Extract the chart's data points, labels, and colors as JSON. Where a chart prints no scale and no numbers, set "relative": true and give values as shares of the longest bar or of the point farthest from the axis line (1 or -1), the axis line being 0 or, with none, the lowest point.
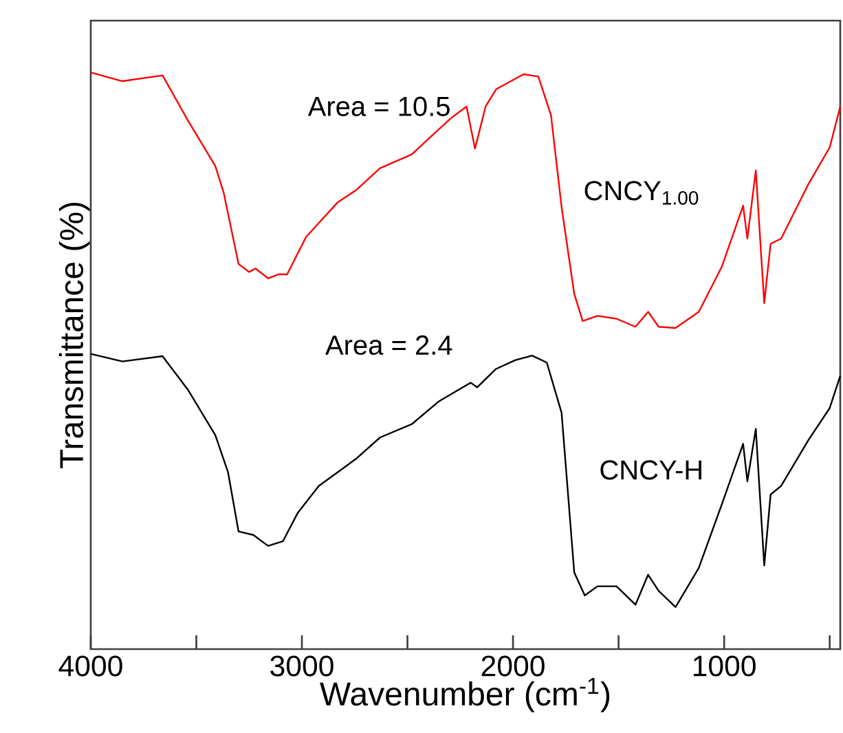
{
  "chart_data": {
    "type": "line",
    "xlabel": "Wavenumber (cm$^{-1}$)",
    "ylabel": "Transmittance (%)",
    "relative": true,
    "xlim": [
      4000,
      450
    ],
    "xticks": [
      4000,
      {
        "value": 3500,
        "label": null
      },
      3000,
      {
        "value": 2500,
        "label": null
      },
      2000,
      {
        "value": 1500,
        "label": null
      },
      1000,
      {
        "value": 500,
        "label": null
      }
    ],
    "annotations": [
      {
        "text": "Area = 10.5",
        "x": 2180,
        "y": 0.868
      },
      {
        "text": "Area = 2.4",
        "x": 2170,
        "y": 0.454
      }
    ],
    "series": [
      {
        "name": "CNCY$_{1.00}$",
        "color": "#ff0000",
        "x": [
          4000,
          3850,
          3660,
          3540,
          3410,
          3370,
          3300,
          3250,
          3220,
          3160,
          3110,
          3070,
          2980,
          2830,
          2740,
          2630,
          2480,
          2350,
          2290,
          2220,
          2180,
          2130,
          2080,
          2010,
          1950,
          1880,
          1820,
          1770,
          1710,
          1670,
          1600,
          1510,
          1420,
          1360,
          1310,
          1230,
          1120,
          1010,
          910,
          890,
          850,
          810,
          780,
          730,
          600,
          500,
          450
        ],
        "values": [
          1.0,
          0.985,
          0.995,
          0.917,
          0.838,
          0.791,
          0.668,
          0.654,
          0.66,
          0.643,
          0.65,
          0.65,
          0.715,
          0.775,
          0.797,
          0.834,
          0.858,
          0.902,
          0.922,
          0.941,
          0.868,
          0.941,
          0.971,
          0.985,
          0.997,
          0.993,
          0.926,
          0.767,
          0.616,
          0.569,
          0.578,
          0.573,
          0.559,
          0.585,
          0.559,
          0.557,
          0.585,
          0.664,
          0.769,
          0.712,
          0.83,
          0.6,
          0.703,
          0.712,
          0.807,
          0.87,
          0.941
        ]
      },
      {
        "name": "CNCY-H",
        "color": "#000000",
        "x": [
          4000,
          3850,
          3660,
          3540,
          3410,
          3350,
          3300,
          3230,
          3160,
          3090,
          3020,
          2920,
          2740,
          2630,
          2480,
          2350,
          2220,
          2200,
          2170,
          2080,
          1990,
          1910,
          1840,
          1770,
          1710,
          1660,
          1600,
          1510,
          1420,
          1360,
          1310,
          1230,
          1120,
          1010,
          910,
          890,
          850,
          810,
          780,
          730,
          600,
          500,
          450
        ],
        "values": [
          0.512,
          0.499,
          0.508,
          0.45,
          0.371,
          0.307,
          0.204,
          0.198,
          0.179,
          0.187,
          0.236,
          0.283,
          0.331,
          0.367,
          0.39,
          0.43,
          0.458,
          0.462,
          0.454,
          0.486,
          0.501,
          0.509,
          0.497,
          0.41,
          0.133,
          0.093,
          0.109,
          0.109,
          0.077,
          0.129,
          0.101,
          0.073,
          0.141,
          0.252,
          0.356,
          0.291,
          0.382,
          0.145,
          0.268,
          0.283,
          0.363,
          0.418,
          0.474
        ]
      }
    ]
  }
}
